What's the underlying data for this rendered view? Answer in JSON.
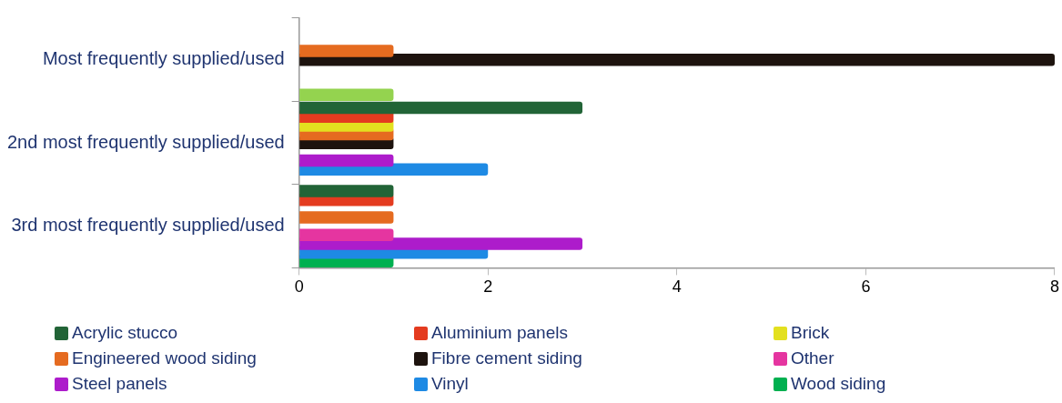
{
  "chart_data": {
    "type": "bar",
    "orientation": "horizontal",
    "categories": [
      "Most frequently supplied/used",
      "2nd most frequently supplied/used",
      "3rd most frequently supplied/used"
    ],
    "series": [
      {
        "name": "Acrylic stucco",
        "color": "#226437",
        "values": [
          0,
          3,
          1
        ]
      },
      {
        "name": "Aluminium panels",
        "color": "#e43b1f",
        "values": [
          0,
          1,
          1
        ]
      },
      {
        "name": "Brick",
        "color": "#e3e01f",
        "values": [
          0,
          1,
          0
        ]
      },
      {
        "name": "Engineered wood siding",
        "color": "#e56b20",
        "values": [
          1,
          1,
          1
        ]
      },
      {
        "name": "Fibre cement siding",
        "color": "#1d130e",
        "values": [
          8,
          1,
          0
        ]
      },
      {
        "name": "Other",
        "color": "#e535a0",
        "values": [
          0,
          0,
          1
        ]
      },
      {
        "name": "Steel panels",
        "color": "#ad1ccb",
        "values": [
          0,
          1,
          3
        ]
      },
      {
        "name": "Vinyl",
        "color": "#1e8ae4",
        "values": [
          0,
          2,
          2
        ]
      },
      {
        "name": "Wood siding",
        "color": "#00b050",
        "colors": [
          "#94d34f",
          "#00b050",
          "#00b050"
        ],
        "values": [
          1,
          0,
          1
        ]
      }
    ],
    "xlim": [
      0,
      8
    ],
    "xticks": [
      0,
      2,
      4,
      6,
      8
    ],
    "grid": false,
    "legend": "bottom"
  }
}
